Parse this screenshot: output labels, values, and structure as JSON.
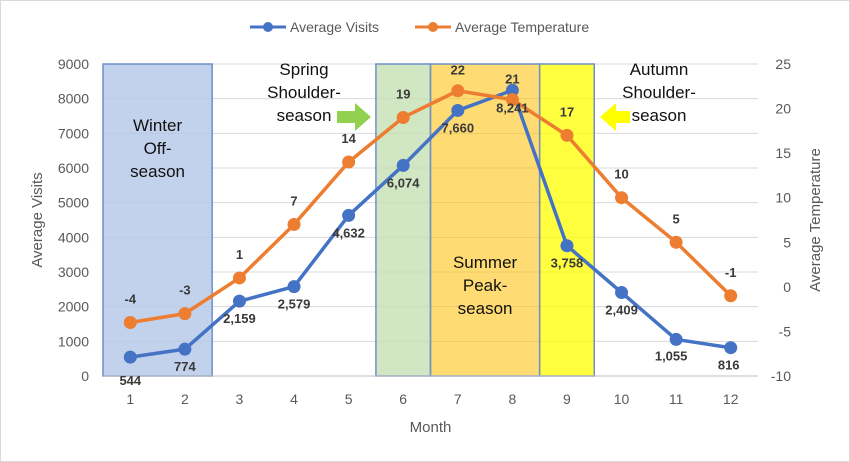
{
  "chart_data": {
    "type": "line",
    "x": [
      1,
      2,
      3,
      4,
      5,
      6,
      7,
      8,
      9,
      10,
      11,
      12
    ],
    "xlabel": "Month",
    "ylabel": "Average Visits",
    "y2label": "Average Temperature",
    "ylim": [
      0,
      9000
    ],
    "y2lim": [
      -10,
      25
    ],
    "yticks": [
      "0",
      "1000",
      "2000",
      "3000",
      "4000",
      "5000",
      "6000",
      "7000",
      "8000",
      "9000"
    ],
    "y2ticks": [
      "-10",
      "-5",
      "0",
      "5",
      "10",
      "15",
      "20",
      "25"
    ],
    "xticks": [
      "1",
      "2",
      "3",
      "4",
      "5",
      "6",
      "7",
      "8",
      "9",
      "10",
      "11",
      "12"
    ],
    "legend_position": "top-center",
    "series": [
      {
        "name": "Average Visits",
        "axis": "left",
        "color": "#4472C4",
        "values": [
          544,
          774,
          2159,
          2579,
          4632,
          6074,
          7660,
          8241,
          3758,
          2409,
          1055,
          816
        ],
        "labels": [
          "544",
          "774",
          "2,159",
          "2,579",
          "4,632",
          "6,074",
          "7,660",
          "8,241",
          "3,758",
          "2,409",
          "1,055",
          "816"
        ]
      },
      {
        "name": "Average Temperature",
        "axis": "right",
        "color": "#ED7D31",
        "values": [
          -4,
          -3,
          1,
          7,
          14,
          19,
          22,
          21,
          17,
          10,
          5,
          -1
        ],
        "labels": [
          "-4",
          "-3",
          "1",
          "7",
          "14",
          "19",
          "22",
          "21",
          "17",
          "10",
          "5",
          "-1"
        ]
      }
    ],
    "zones": [
      {
        "name": "winter",
        "lines": [
          "Winter",
          "Off-",
          "season"
        ],
        "from": 0.5,
        "to": 2.5,
        "color": "#B4C7E7"
      },
      {
        "name": "spring",
        "lines": [],
        "from": 5.5,
        "to": 6.5,
        "color": "#C5E0B4"
      },
      {
        "name": "summer",
        "lines": [
          "Summer",
          "Peak-",
          "season"
        ],
        "from": 6.5,
        "to": 8.5,
        "color": "#FFC000"
      },
      {
        "name": "autumn",
        "lines": [],
        "from": 8.5,
        "to": 9.5,
        "color": "#FFFF00"
      }
    ],
    "annotations": [
      {
        "name": "spring-shoulder",
        "lines": [
          "Spring",
          "Shoulder-",
          "season"
        ],
        "arrow": "right",
        "arrow_color": "#92D050"
      },
      {
        "name": "autumn-shoulder",
        "lines": [
          "Autumn",
          "Shoulder-",
          "season"
        ],
        "arrow": "left",
        "arrow_color": "#FFFF00"
      }
    ]
  }
}
